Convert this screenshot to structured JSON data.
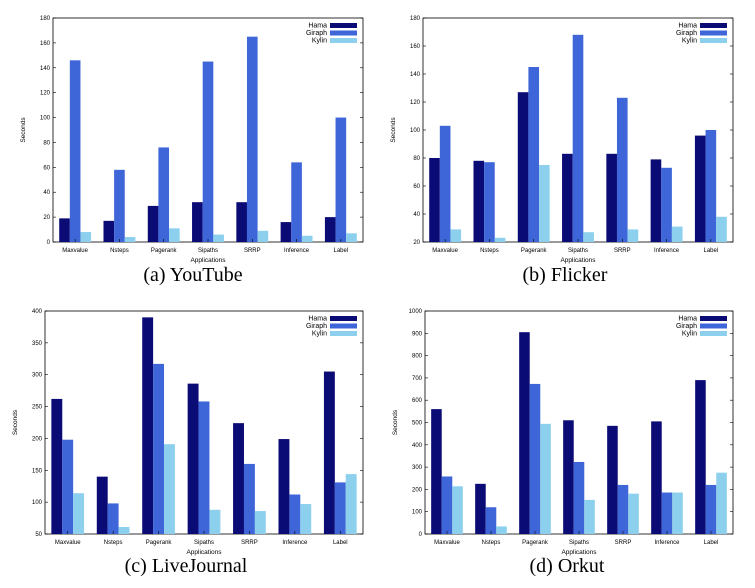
{
  "colors": {
    "hama": "#0b0b75",
    "giraph": "#3f66d8",
    "kylin": "#8dd0ee"
  },
  "chart_data": [
    {
      "type": "bar",
      "caption": "(a)  YouTube",
      "xlabel": "Applications",
      "ylabel": "Seconds",
      "ylim": [
        0,
        180
      ],
      "yticks": [
        0,
        20,
        40,
        60,
        80,
        100,
        120,
        140,
        160,
        180
      ],
      "categories": [
        "Maxvalue",
        "Nsteps",
        "Pagerank",
        "Sipaths",
        "SRRP",
        "Inference",
        "Label"
      ],
      "series": [
        {
          "name": "Hama",
          "values": [
            19,
            17,
            29,
            32,
            32,
            16,
            20
          ]
        },
        {
          "name": "Giraph",
          "values": [
            146,
            58,
            76,
            145,
            165,
            64,
            100
          ]
        },
        {
          "name": "Kylin",
          "values": [
            8,
            4,
            11,
            6,
            9,
            5,
            7
          ]
        }
      ],
      "legend": "top-right"
    },
    {
      "type": "bar",
      "caption": "(b)  Flicker",
      "xlabel": "Applications",
      "ylabel": "Seconds",
      "ylim": [
        20,
        180
      ],
      "yticks": [
        20,
        40,
        60,
        80,
        100,
        120,
        140,
        160,
        180
      ],
      "categories": [
        "Maxvalue",
        "Nsteps",
        "Pagerank",
        "Sipaths",
        "SRRP",
        "Inference",
        "Label"
      ],
      "series": [
        {
          "name": "Hama",
          "values": [
            80,
            78,
            127,
            83,
            83,
            79,
            96
          ]
        },
        {
          "name": "Giraph",
          "values": [
            103,
            77,
            145,
            168,
            123,
            73,
            100
          ]
        },
        {
          "name": "Kylin",
          "values": [
            29,
            23,
            75,
            27,
            29,
            31,
            38
          ]
        }
      ],
      "legend": "top-right"
    },
    {
      "type": "bar",
      "caption": "(c)  LiveJournal",
      "xlabel": "Applications",
      "ylabel": "Seconds",
      "ylim": [
        50,
        400
      ],
      "yticks": [
        50,
        100,
        150,
        200,
        250,
        300,
        350,
        400
      ],
      "categories": [
        "Maxvalue",
        "Nsteps",
        "Pagerank",
        "Sipaths",
        "SRRP",
        "Inference",
        "Label"
      ],
      "series": [
        {
          "name": "Hama",
          "values": [
            262,
            140,
            390,
            286,
            224,
            199,
            305
          ]
        },
        {
          "name": "Giraph",
          "values": [
            198,
            98,
            317,
            258,
            160,
            112,
            131
          ]
        },
        {
          "name": "Kylin",
          "values": [
            114,
            61,
            191,
            88,
            86,
            97,
            144
          ]
        }
      ],
      "legend": "top-right"
    },
    {
      "type": "bar",
      "caption": "(d)  Orkut",
      "xlabel": "Applications",
      "ylabel": "Seconds",
      "ylim": [
        0,
        1000
      ],
      "yticks": [
        0,
        100,
        200,
        300,
        400,
        500,
        600,
        700,
        800,
        900,
        1000
      ],
      "categories": [
        "Maxvalue",
        "Nsteps",
        "Pagerank",
        "Sipaths",
        "SRRP",
        "Inference",
        "Label"
      ],
      "series": [
        {
          "name": "Hama",
          "values": [
            560,
            225,
            905,
            510,
            485,
            505,
            690
          ]
        },
        {
          "name": "Giraph",
          "values": [
            258,
            120,
            673,
            323,
            220,
            186,
            220
          ]
        },
        {
          "name": "Kylin",
          "values": [
            214,
            34,
            494,
            153,
            181,
            186,
            275
          ]
        }
      ],
      "legend": "top-right"
    }
  ]
}
